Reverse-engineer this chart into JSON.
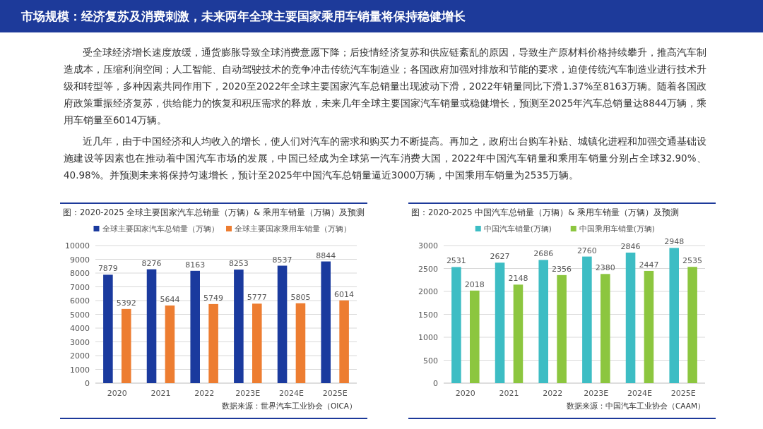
{
  "chart_data": [
    {
      "type": "other",
      "title": "市场规模：经济复苏及消费刺激，未来两年全球主要国家乘用车销量将保持稳健增长",
      "annotations": [
        "受全球经济增长速度放缓，通货膨胀导致全球消费意愿下降；后疫情经济复苏和供应链紊乱的原因，导致生产原材料价格持续攀升，推高汽车制造成本，压缩利润空间；人工智能、自动驾驶技术的竞争冲击传统汽车制造业；各国政府加强对排放和节能的要求，迫使传统汽车制造业进行技术升级和转型等，多种因素共同作用下，2020至2022年全球主要国家汽车总销量出现波动下滑，2022年销量同比下滑1.37%至8163万辆。随着各国政府政策重振经济复苏，供给能力的恢复和积压需求的释放，未来几年全球主要国家汽车销量或稳健增长，预测至2025年汽车总销量达8844万辆，乘用车销量至6014万辆。",
        "近几年，由于中国经济和人均收入的增长，使人们对汽车的需求和购买力不断提高。再加之，政府出台购车补贴、城镇化进程和加强交通基础设施建设等因素也在推动着中国汽车市场的发展，中国已经成为全球第一汽车消费大国，2022年中国汽车销量和乘用车销量分别占全球32.90%、40.98%。并预测未来将保持匀速增长，预计至2025年中国汽车总销量逼近3000万辆，中国乘用车销量为2535万辆。"
      ]
    },
    {
      "type": "bar",
      "title": "图：2020-2025 全球主要国家汽车总销量（万辆）& 乘用车销量（万辆）及预测",
      "categories": [
        "2020",
        "2021",
        "2022",
        "2023E",
        "2024E",
        "2025E"
      ],
      "series": [
        {
          "name": "全球主要国家汽车总销量（万辆）",
          "color": "#1a3a9e",
          "values": [
            7879,
            8276,
            8163,
            8253,
            8537,
            8844
          ]
        },
        {
          "name": "全球主要国家乘用车销量（万辆）",
          "color": "#ed7d31",
          "values": [
            5392,
            5644,
            5749,
            5777,
            5805,
            6014
          ]
        }
      ],
      "ylim": [
        0,
        10000
      ],
      "yticks": [
        0,
        1000,
        2000,
        3000,
        4000,
        5000,
        6000,
        7000,
        8000,
        9000,
        10000
      ],
      "grid": "y",
      "legend": "top",
      "data_labels": true,
      "annotations": [
        "数据来源：世界汽车工业协会（OICA）"
      ]
    },
    {
      "type": "bar",
      "title": "图：2020-2025 中国汽车总销量（万辆）& 乘用车销量（万辆）及预测",
      "categories": [
        "2020",
        "2021",
        "2022",
        "2023E",
        "2024E",
        "2025E"
      ],
      "series": [
        {
          "name": "中国汽车销量(万辆)",
          "color": "#3dbdc4",
          "values": [
            2531,
            2627,
            2686,
            2760,
            2846,
            2948
          ]
        },
        {
          "name": "中国乘用车销量(万辆)",
          "color": "#8cc63f",
          "values": [
            2018,
            2148,
            2356,
            2380,
            2447,
            2535
          ]
        }
      ],
      "ylim": [
        0,
        3000
      ],
      "yticks": [
        0,
        500,
        1000,
        1500,
        2000,
        2500,
        3000
      ],
      "grid": "y",
      "legend": "top",
      "data_labels": true,
      "annotations": [
        "数据来源：中国汽车工业协会（CAAM）"
      ]
    }
  ]
}
